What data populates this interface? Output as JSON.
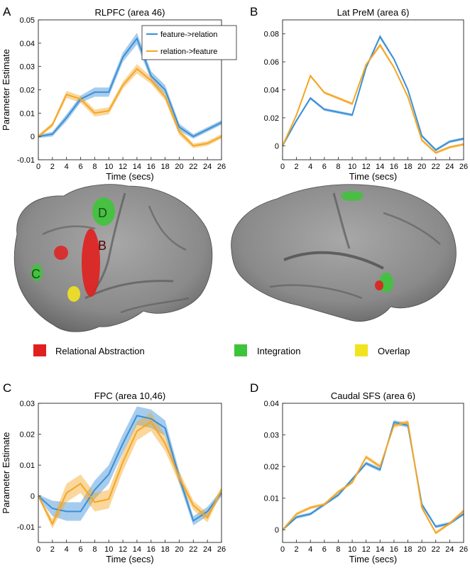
{
  "panel_letters": [
    "A",
    "B",
    "C",
    "D"
  ],
  "legend": {
    "entries": [
      {
        "label": "feature->relation",
        "color": "#3a8fd6"
      },
      {
        "label": "relation->feature",
        "color": "#f5a623"
      }
    ]
  },
  "brain_legend": [
    {
      "label": "Relational Abstraction",
      "color": "#e0201e"
    },
    {
      "label": "Integration",
      "color": "#3ec43a"
    },
    {
      "label": "Overlap",
      "color": "#f2e320"
    }
  ],
  "brain_labels": {
    "left": [
      "D",
      "B",
      "C"
    ]
  },
  "chart_data": [
    {
      "type": "line",
      "panel": "A",
      "title": "RLPFC (area 46)",
      "xlabel": "Time (secs)",
      "ylabel": "Parameter Estimate",
      "xlim": [
        0,
        26
      ],
      "ylim": [
        -0.01,
        0.05
      ],
      "xticks": [
        "0",
        "2",
        "4",
        "6",
        "8",
        "10",
        "12",
        "14",
        "16",
        "18",
        "20",
        "22",
        "24",
        "26"
      ],
      "yticks": [
        "-0.01",
        "0",
        "0.01",
        "0.02",
        "0.03",
        "0.04",
        "0.05"
      ],
      "x": [
        0,
        2,
        4,
        6,
        8,
        10,
        12,
        14,
        16,
        18,
        20,
        22,
        24,
        26
      ],
      "series": [
        {
          "name": "feature->relation",
          "color": "#3a8fd6",
          "values": [
            0.0,
            0.001,
            0.008,
            0.016,
            0.019,
            0.019,
            0.034,
            0.042,
            0.026,
            0.02,
            0.004,
            0.0,
            0.003,
            0.006
          ],
          "err": [
            0.0007,
            0.001,
            0.0015,
            0.0015,
            0.002,
            0.002,
            0.002,
            0.0025,
            0.002,
            0.002,
            0.0015,
            0.001,
            0.001,
            0.001
          ]
        },
        {
          "name": "relation->feature",
          "color": "#f5a623",
          "values": [
            0.0,
            0.005,
            0.018,
            0.016,
            0.01,
            0.011,
            0.022,
            0.029,
            0.024,
            0.017,
            0.002,
            -0.004,
            -0.003,
            0.0
          ],
          "err": [
            0.0007,
            0.001,
            0.0015,
            0.0015,
            0.0015,
            0.0015,
            0.0015,
            0.002,
            0.0015,
            0.0015,
            0.0015,
            0.001,
            0.001,
            0.001
          ]
        }
      ]
    },
    {
      "type": "line",
      "panel": "B",
      "title": "Lat PreM (area 6)",
      "xlabel": "Time (secs)",
      "ylabel": "",
      "xlim": [
        0,
        26
      ],
      "ylim": [
        -0.01,
        0.09
      ],
      "xticks": [
        "0",
        "2",
        "4",
        "6",
        "8",
        "10",
        "12",
        "14",
        "16",
        "18",
        "20",
        "22",
        "24",
        "26"
      ],
      "yticks": [
        "0",
        "0.02",
        "0.04",
        "0.06",
        "0.08"
      ],
      "x": [
        0,
        2,
        4,
        6,
        8,
        10,
        12,
        14,
        16,
        18,
        20,
        22,
        24,
        26
      ],
      "series": [
        {
          "name": "feature->relation",
          "color": "#3a8fd6",
          "values": [
            0.0,
            0.018,
            0.034,
            0.026,
            0.024,
            0.022,
            0.056,
            0.078,
            0.062,
            0.04,
            0.007,
            -0.003,
            0.003,
            0.005
          ],
          "err": [
            0.0005,
            0.001,
            0.001,
            0.001,
            0.001,
            0.001,
            0.001,
            0.0015,
            0.001,
            0.001,
            0.001,
            0.001,
            0.001,
            0.001
          ]
        },
        {
          "name": "relation->feature",
          "color": "#f5a623",
          "values": [
            0.0,
            0.022,
            0.05,
            0.038,
            0.034,
            0.03,
            0.058,
            0.072,
            0.056,
            0.035,
            0.004,
            -0.005,
            -0.001,
            0.001
          ],
          "err": [
            0.0005,
            0.001,
            0.001,
            0.001,
            0.001,
            0.001,
            0.001,
            0.0015,
            0.001,
            0.001,
            0.001,
            0.001,
            0.001,
            0.001
          ]
        }
      ]
    },
    {
      "type": "line",
      "panel": "C",
      "title": "FPC (area 10,46)",
      "xlabel": "Time (secs)",
      "ylabel": "Parameter Estimate",
      "xlim": [
        0,
        26
      ],
      "ylim": [
        -0.015,
        0.03
      ],
      "xticks": [
        "0",
        "2",
        "4",
        "6",
        "8",
        "10",
        "12",
        "14",
        "16",
        "18",
        "20",
        "22",
        "24",
        "26"
      ],
      "yticks": [
        "-0.01",
        "0",
        "0.01",
        "0.02",
        "0.03"
      ],
      "x": [
        0,
        2,
        4,
        6,
        8,
        10,
        12,
        14,
        16,
        18,
        20,
        22,
        24,
        26
      ],
      "series": [
        {
          "name": "feature->relation",
          "color": "#3a8fd6",
          "values": [
            0.0,
            -0.004,
            -0.005,
            -0.005,
            0.002,
            0.007,
            0.017,
            0.026,
            0.025,
            0.022,
            0.006,
            -0.008,
            -0.005,
            0.001
          ],
          "err": [
            0.0005,
            0.0025,
            0.003,
            0.003,
            0.003,
            0.003,
            0.003,
            0.003,
            0.003,
            0.0025,
            0.002,
            0.0015,
            0.0015,
            0.001
          ]
        },
        {
          "name": "relation->feature",
          "color": "#f5a623",
          "values": [
            0.0,
            -0.009,
            0.001,
            0.004,
            -0.002,
            -0.001,
            0.011,
            0.021,
            0.024,
            0.017,
            0.006,
            -0.003,
            -0.007,
            0.002
          ],
          "err": [
            0.0005,
            0.0015,
            0.003,
            0.003,
            0.003,
            0.003,
            0.003,
            0.003,
            0.003,
            0.0025,
            0.002,
            0.0015,
            0.0015,
            0.001
          ]
        }
      ]
    },
    {
      "type": "line",
      "panel": "D",
      "title": "Caudal SFS (area 6)",
      "xlabel": "Time (secs)",
      "ylabel": "",
      "xlim": [
        0,
        26
      ],
      "ylim": [
        -0.004,
        0.04
      ],
      "xticks": [
        "0",
        "2",
        "4",
        "6",
        "8",
        "10",
        "12",
        "14",
        "16",
        "18",
        "20",
        "22",
        "24",
        "26"
      ],
      "yticks": [
        "0",
        "0.01",
        "0.02",
        "0.03",
        "0.04"
      ],
      "x": [
        0,
        2,
        4,
        6,
        8,
        10,
        12,
        14,
        16,
        18,
        20,
        22,
        24,
        26
      ],
      "series": [
        {
          "name": "feature->relation",
          "color": "#3a8fd6",
          "values": [
            0.0,
            0.004,
            0.005,
            0.008,
            0.011,
            0.016,
            0.021,
            0.019,
            0.034,
            0.033,
            0.008,
            0.001,
            0.002,
            0.005
          ],
          "err": [
            0.0003,
            0.0005,
            0.0005,
            0.0005,
            0.0005,
            0.0005,
            0.0006,
            0.0006,
            0.0007,
            0.0007,
            0.0006,
            0.0005,
            0.0005,
            0.0005
          ]
        },
        {
          "name": "relation->feature",
          "color": "#f5a623",
          "values": [
            0.0,
            0.005,
            0.007,
            0.008,
            0.012,
            0.015,
            0.023,
            0.02,
            0.033,
            0.034,
            0.007,
            -0.001,
            0.002,
            0.006
          ],
          "err": [
            0.0003,
            0.0005,
            0.0005,
            0.0005,
            0.0005,
            0.0005,
            0.0006,
            0.0006,
            0.0007,
            0.0007,
            0.0006,
            0.0005,
            0.0005,
            0.0005
          ]
        }
      ]
    }
  ]
}
